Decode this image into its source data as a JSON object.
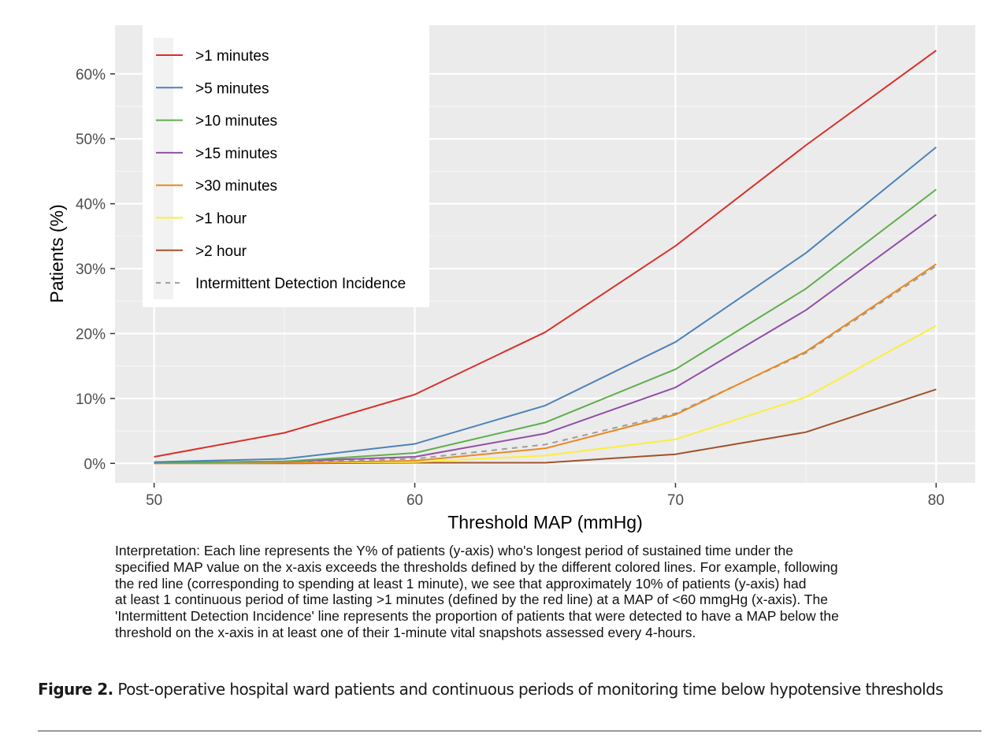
{
  "chart_data": {
    "type": "line",
    "xlabel": "Threshold MAP (mmHg)",
    "ylabel": "Patients (%)",
    "x": [
      50,
      55,
      60,
      65,
      70,
      75,
      80
    ],
    "xlim": [
      48.5,
      81.5
    ],
    "ylim": [
      -3,
      67.5
    ],
    "xticks": [
      50,
      60,
      70,
      80
    ],
    "yticks": [
      0,
      10,
      20,
      30,
      40,
      50,
      60
    ],
    "ytick_labels": [
      "0%",
      "10%",
      "20%",
      "30%",
      "40%",
      "50%",
      "60%"
    ],
    "xtick_labels": [
      "50",
      "60",
      "70",
      "80"
    ],
    "grid": true,
    "legend_position": "top-left",
    "series": [
      {
        "name": ">1 minutes",
        "color": "#d7312a",
        "dash": false,
        "values": [
          1.0,
          4.7,
          10.6,
          20.2,
          33.5,
          49.0,
          63.6
        ]
      },
      {
        "name": ">5 minutes",
        "color": "#4d82b8",
        "dash": false,
        "values": [
          0.2,
          0.7,
          3.0,
          8.9,
          18.7,
          32.4,
          48.7
        ]
      },
      {
        "name": ">10 minutes",
        "color": "#5fae4e",
        "dash": false,
        "values": [
          0.1,
          0.3,
          1.6,
          6.3,
          14.5,
          26.9,
          42.2
        ]
      },
      {
        "name": ">15 minutes",
        "color": "#9150a6",
        "dash": false,
        "values": [
          0.1,
          0.3,
          1.0,
          4.6,
          11.7,
          23.6,
          38.3
        ]
      },
      {
        "name": ">30 minutes",
        "color": "#e88a22",
        "dash": false,
        "values": [
          0.0,
          0.1,
          0.4,
          2.3,
          7.5,
          17.2,
          30.7
        ]
      },
      {
        "name": ">1 hour",
        "color": "#fbee3e",
        "dash": false,
        "values": [
          0.0,
          0.1,
          0.2,
          1.2,
          3.7,
          10.2,
          21.2
        ]
      },
      {
        "name": ">2 hour",
        "color": "#a0522d",
        "dash": false,
        "values": [
          0.0,
          0.0,
          0.1,
          0.1,
          1.4,
          4.8,
          11.4
        ]
      },
      {
        "name": "Intermittent Detection Incidence",
        "color": "#9e9e9e",
        "dash": true,
        "values": [
          0.0,
          0.2,
          0.7,
          2.9,
          7.7,
          17.0,
          30.4
        ]
      }
    ]
  },
  "interpretation": "Interpretation: Each line represents the Y% of patients (y-axis) who's longest period of sustained time under the specified MAP value on the x-axis exceeds the thresholds defined by the different colored lines. For example, following the red line (corresponding to spending at least 1 minute), we see that approximately 10% of patients (y-axis) had at least 1 continuous period of time lasting >1 minutes (defined by the red line) at a MAP of <60 mmgHg (x-axis). The 'Intermittent Detection Incidence' line represents the proportion of patients that were detected to have a MAP below the threshold on the x-axis in at least one of their 1-minute vital snapshots assessed every 4-hours.",
  "interpretation_lines": [
    "Interpretation: Each line represents the Y% of patients (y-axis) who's longest period of sustained time under the",
    "specified MAP value on the x-axis exceeds the thresholds defined by the different colored lines. For example, following",
    "the red line (corresponding to spending at least 1 minute), we see that approximately 10% of patients (y-axis) had",
    "at least 1 continuous period of time lasting >1 minutes (defined by the red line) at a MAP of <60 mmgHg (x-axis). The",
    "'Intermittent Detection Incidence' line represents the proportion of patients that were detected to have a MAP below the",
    "threshold on the x-axis in at least one of their 1-minute vital snapshots assessed every 4-hours."
  ],
  "figure": {
    "label": "Figure 2.",
    "caption": " Post-operative hospital ward patients and continuous periods of monitoring time below hypotensive thresholds"
  }
}
